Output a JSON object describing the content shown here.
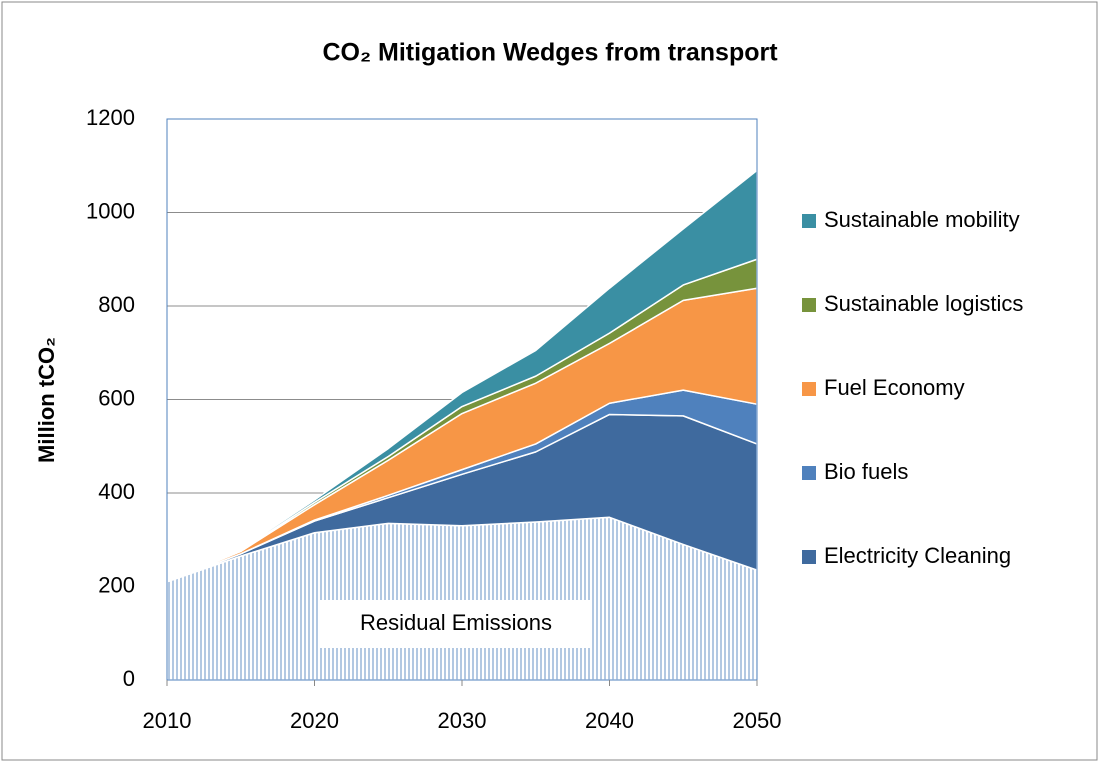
{
  "chart_data": {
    "type": "stacked_area",
    "title": "CO₂ Mitigation Wedges from transport",
    "y_label": "Million tCO₂",
    "x": [
      2010,
      2015,
      2020,
      2025,
      2030,
      2035,
      2040,
      2045,
      2050
    ],
    "xlim": [
      2010,
      2050
    ],
    "xticks": [
      2010,
      2020,
      2030,
      2040,
      2050
    ],
    "ylim": [
      0,
      1200
    ],
    "yticks": [
      0,
      200,
      400,
      600,
      800,
      1000,
      1200
    ],
    "grid": true,
    "legend": "right",
    "series": [
      {
        "name": "Residual Emissions",
        "color": "#9bb7da",
        "pattern": "hatch",
        "in_legend": false,
        "values": [
          210,
          265,
          315,
          335,
          330,
          338,
          348,
          290,
          235
        ]
      },
      {
        "name": "Electricity Cleaning",
        "color": "#3f6a9e",
        "values": [
          0,
          5,
          25,
          55,
          110,
          150,
          220,
          275,
          270
        ]
      },
      {
        "name": "Bio fuels",
        "color": "#4f81bd",
        "values": [
          0,
          0,
          2,
          5,
          10,
          17,
          24,
          55,
          85
        ]
      },
      {
        "name": "Fuel Economy",
        "color": "#f79646",
        "values": [
          0,
          5,
          33,
          75,
          120,
          130,
          128,
          192,
          248
        ]
      },
      {
        "name": "Sustainable logistics",
        "color": "#77933c",
        "values": [
          0,
          2,
          5,
          8,
          15,
          15,
          22,
          33,
          62
        ]
      },
      {
        "name": "Sustainable mobility",
        "color": "#3a8fa3",
        "values": [
          0,
          3,
          5,
          17,
          30,
          55,
          96,
          120,
          190
        ]
      }
    ]
  }
}
